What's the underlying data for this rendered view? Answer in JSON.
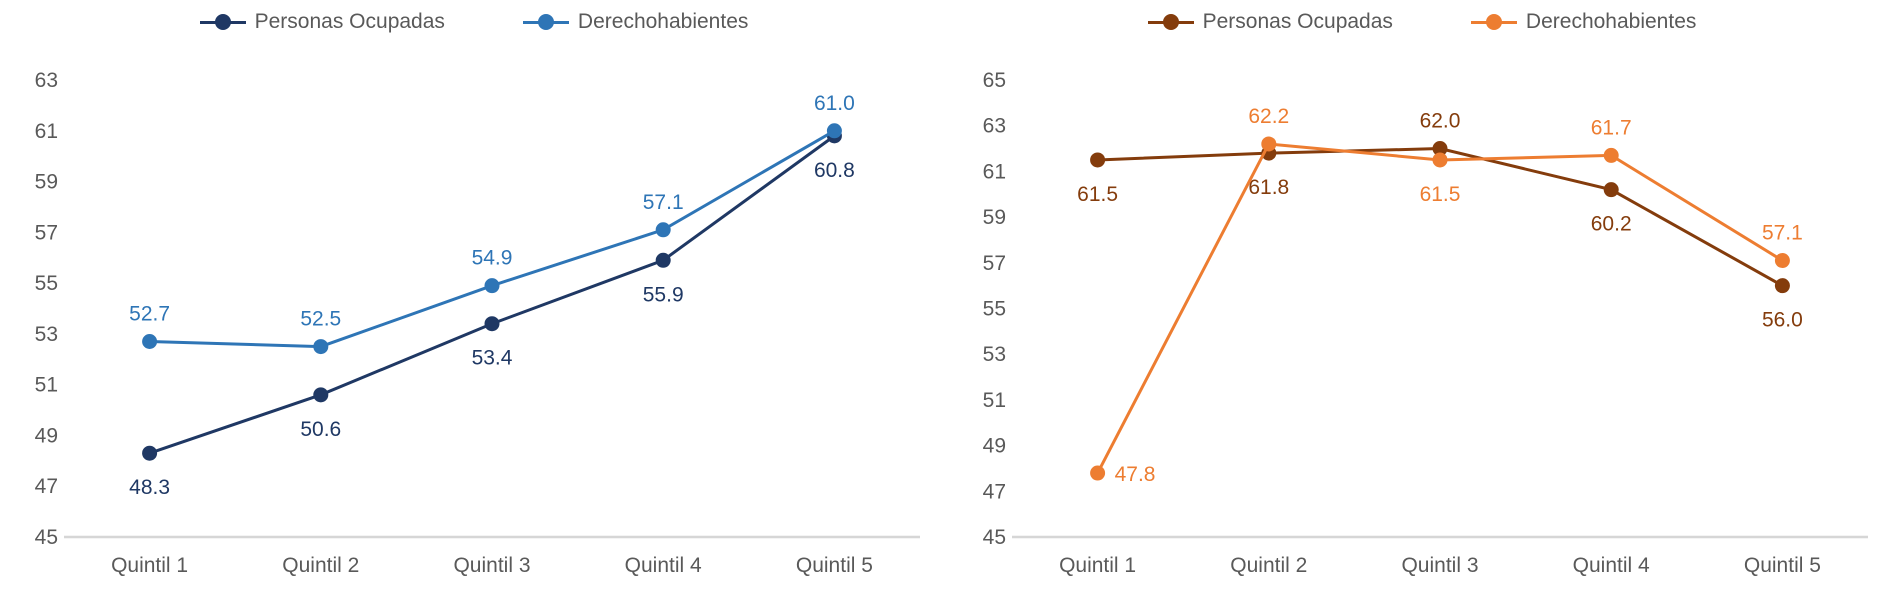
{
  "chart_data": [
    {
      "type": "line",
      "categories": [
        "Quintil 1",
        "Quintil 2",
        "Quintil 3",
        "Quintil 4",
        "Quintil 5"
      ],
      "series": [
        {
          "name": "Personas Ocupadas",
          "color": "#1F3864",
          "values": [
            48.3,
            50.6,
            53.4,
            55.9,
            60.8
          ],
          "label_pos": [
            "below",
            "below",
            "below",
            "below",
            "below"
          ]
        },
        {
          "name": "Derechohabientes",
          "color": "#2E75B6",
          "values": [
            52.7,
            52.5,
            54.9,
            57.1,
            61.0
          ],
          "label_pos": [
            "above",
            "above",
            "above",
            "above",
            "above"
          ]
        }
      ],
      "title": "",
      "xlabel": "",
      "ylabel": "",
      "ylim": [
        45,
        63
      ],
      "ytick_step": 2,
      "grid": false,
      "legend_position": "top",
      "axis_text_color": "#595959",
      "baseline_color": "#D6D6D6"
    },
    {
      "type": "line",
      "categories": [
        "Quintil 1",
        "Quintil 2",
        "Quintil 3",
        "Quintil 4",
        "Quintil 5"
      ],
      "series": [
        {
          "name": "Personas Ocupadas",
          "color": "#843C0C",
          "values": [
            61.5,
            61.8,
            62.0,
            60.2,
            56.0
          ],
          "label_pos": [
            "below",
            "below",
            "above",
            "below",
            "below"
          ]
        },
        {
          "name": "Derechohabientes",
          "color": "#ED7D31",
          "values": [
            47.8,
            62.2,
            61.5,
            61.7,
            57.1
          ],
          "label_pos": [
            "right",
            "above",
            "below",
            "above",
            "above"
          ]
        }
      ],
      "title": "",
      "xlabel": "",
      "ylabel": "",
      "ylim": [
        45,
        65
      ],
      "ytick_step": 2,
      "grid": false,
      "legend_position": "top",
      "axis_text_color": "#595959",
      "baseline_color": "#D6D6D6"
    }
  ]
}
